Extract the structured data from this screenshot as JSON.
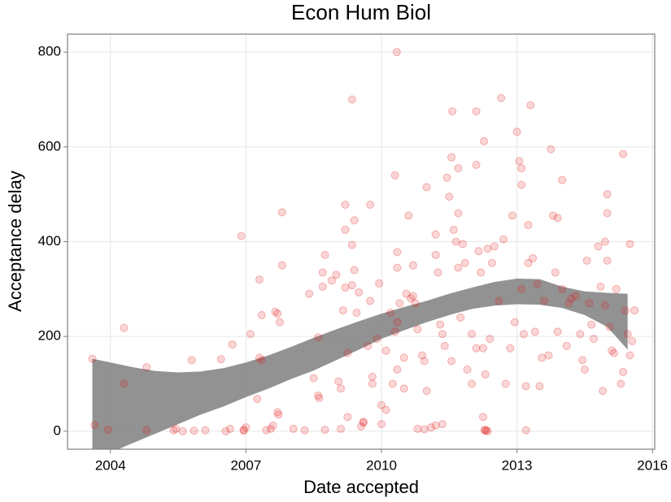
{
  "chart_data": {
    "type": "scatter",
    "title": "Econ Hum Biol",
    "x_label": "Date accepted",
    "y_label": "Acceptance delay",
    "xlim": [
      2003.05,
      2016.05
    ],
    "ylim": [
      -38,
      838
    ],
    "xticks": [
      2004,
      2007,
      2010,
      2013,
      2016
    ],
    "yticks": [
      0,
      200,
      400,
      600,
      800
    ],
    "grid": true,
    "points": {
      "color": "#e41a1c",
      "x": [
        2003.6,
        2003.65,
        2003.95,
        2004.3,
        2004.3,
        2004.8,
        2004.8,
        2005.4,
        2005.45,
        2005.6,
        2005.8,
        2005.85,
        2006.1,
        2006.45,
        2006.55,
        2006.65,
        2006.7,
        2006.95,
        2006.9,
        2007.0,
        2006.95,
        2007.1,
        2007.3,
        2007.3,
        2007.35,
        2007.25,
        2007.35,
        2007.45,
        2007.55,
        2007.6,
        2007.65,
        2007.7,
        2007.7,
        2007.72,
        2007.8,
        2007.8,
        2007.75,
        2008.05,
        2008.3,
        2008.4,
        2008.5,
        2008.6,
        2008.6,
        2008.62,
        2008.7,
        2008.7,
        2008.75,
        2008.75,
        2008.9,
        2009.0,
        2009.05,
        2009.1,
        2009.1,
        2009.2,
        2009.15,
        2009.2,
        2009.2,
        2009.25,
        2009.25,
        2009.35,
        2009.35,
        2009.4,
        2009.4,
        2009.45,
        2009.35,
        2009.5,
        2009.55,
        2009.6,
        2009.6,
        2009.7,
        2009.75,
        2009.75,
        2009.8,
        2009.8,
        2009.9,
        2009.95,
        2010.0,
        2010.0,
        2010.1,
        2010.1,
        2010.25,
        2010.2,
        2010.35,
        2010.3,
        2010.35,
        2010.3,
        2010.34,
        2010.35,
        2010.35,
        2010.4,
        2010.5,
        2010.5,
        2010.55,
        2010.6,
        2010.65,
        2010.7,
        2010.7,
        2010.75,
        2010.8,
        2010.8,
        2010.95,
        2010.9,
        2010.95,
        2011.0,
        2011.0,
        2011.1,
        2011.2,
        2011.2,
        2011.3,
        2011.25,
        2011.35,
        2011.2,
        2011.35,
        2011.4,
        2011.45,
        2011.5,
        2011.55,
        2011.55,
        2011.6,
        2011.65,
        2011.7,
        2011.7,
        2011.7,
        2011.57,
        2011.75,
        2011.8,
        2011.85,
        2011.9,
        2012.0,
        2012.0,
        2012.1,
        2012.1,
        2012.1,
        2012.15,
        2012.2,
        2012.25,
        2012.25,
        2012.3,
        2012.28,
        2012.3,
        2012.32,
        2012.35,
        2012.27,
        2012.35,
        2012.4,
        2012.45,
        2012.5,
        2012.6,
        2012.65,
        2012.7,
        2012.75,
        2012.85,
        2012.9,
        2012.95,
        2013.0,
        2013.05,
        2013.1,
        2013.1,
        2013.1,
        2013.15,
        2013.2,
        2013.2,
        2013.25,
        2013.3,
        2013.25,
        2013.35,
        2013.4,
        2013.45,
        2013.5,
        2013.55,
        2013.6,
        2013.7,
        2013.75,
        2013.8,
        2013.85,
        2013.9,
        2013.9,
        2014.0,
        2014.0,
        2014.1,
        2014.15,
        2014.2,
        2014.3,
        2014.4,
        2014.45,
        2014.5,
        2014.55,
        2014.6,
        2014.65,
        2014.7,
        2014.8,
        2014.85,
        2014.9,
        2014.95,
        2014.95,
        2015.0,
        2015.0,
        2015.0,
        2015.05,
        2015.1,
        2015.15,
        2015.2,
        2015.3,
        2015.35,
        2015.35,
        2015.4,
        2015.45,
        2015.5,
        2015.5,
        2015.55,
        2015.6
      ],
      "y": [
        153,
        13,
        3,
        218,
        100,
        135,
        2,
        2,
        5,
        0,
        150,
        1,
        2,
        152,
        0,
        5,
        183,
        3,
        412,
        8,
        1,
        205,
        320,
        155,
        150,
        68,
        245,
        2,
        5,
        12,
        252,
        248,
        40,
        35,
        350,
        462,
        230,
        5,
        2,
        290,
        112,
        198,
        75,
        70,
        335,
        305,
        372,
        3,
        318,
        330,
        105,
        5,
        90,
        303,
        255,
        478,
        425,
        30,
        165,
        308,
        393,
        340,
        445,
        250,
        700,
        293,
        10,
        18,
        20,
        180,
        275,
        478,
        100,
        115,
        195,
        312,
        15,
        55,
        170,
        45,
        100,
        250,
        130,
        210,
        230,
        540,
        800,
        345,
        378,
        270,
        155,
        90,
        290,
        455,
        280,
        285,
        350,
        270,
        215,
        5,
        4,
        160,
        148,
        515,
        85,
        8,
        415,
        372,
        225,
        335,
        205,
        12,
        15,
        180,
        535,
        495,
        148,
        578,
        425,
        400,
        345,
        555,
        460,
        675,
        240,
        395,
        355,
        130,
        100,
        205,
        175,
        562,
        675,
        380,
        335,
        30,
        175,
        120,
        2,
        3,
        1,
        0,
        612,
        385,
        195,
        355,
        390,
        275,
        703,
        405,
        100,
        175,
        455,
        230,
        632,
        570,
        520,
        555,
        300,
        205,
        2,
        95,
        435,
        688,
        355,
        365,
        210,
        310,
        95,
        155,
        275,
        160,
        595,
        455,
        335,
        450,
        210,
        530,
        300,
        180,
        270,
        280,
        285,
        205,
        150,
        130,
        360,
        270,
        225,
        195,
        390,
        305,
        85,
        400,
        265,
        500,
        460,
        360,
        220,
        170,
        165,
        300,
        100,
        125,
        585,
        255,
        205,
        160,
        395,
        190,
        255
      ]
    },
    "band": {
      "color": "#7f7f7f",
      "x": [
        2003.6,
        2004,
        2004.5,
        2005,
        2005.5,
        2006,
        2006.5,
        2007,
        2007.5,
        2008,
        2008.5,
        2009,
        2009.5,
        2010,
        2010.5,
        2011,
        2011.5,
        2012,
        2012.5,
        2013,
        2013.5,
        2014,
        2014.5,
        2015,
        2015.45
      ],
      "upper": [
        153,
        145,
        135,
        127,
        124,
        126,
        133,
        145,
        160,
        178,
        197,
        215,
        232,
        248,
        262,
        275,
        290,
        303,
        315,
        322,
        321,
        305,
        295,
        292,
        290
      ],
      "lower": [
        -60,
        -45,
        -25,
        -5,
        15,
        35,
        52,
        72,
        90,
        110,
        128,
        150,
        172,
        195,
        213,
        230,
        245,
        258,
        265,
        268,
        267,
        260,
        245,
        220,
        172
      ]
    }
  }
}
